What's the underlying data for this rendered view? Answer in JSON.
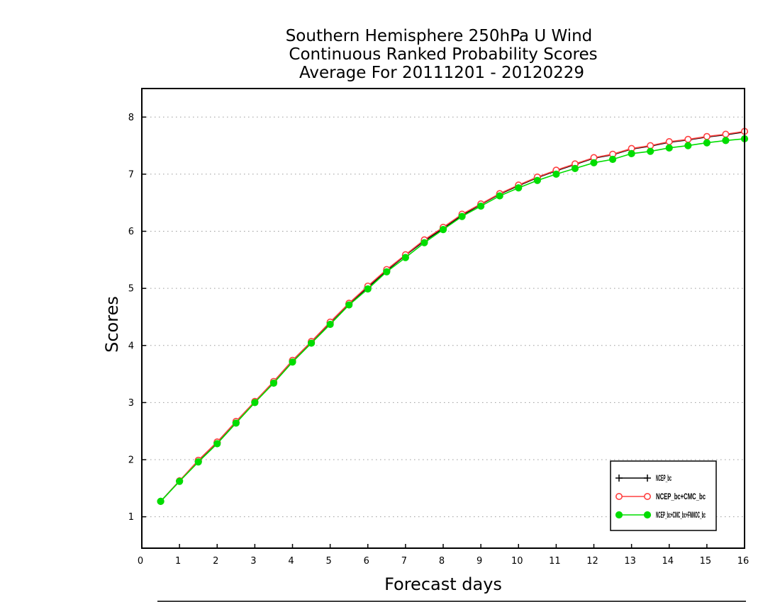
{
  "chart_data": {
    "type": "line",
    "title_lines": [
      "Southern Hemisphere 250hPa U Wind",
      "Continuous Ranked Probability Scores",
      "Average For 20111201 - 20120229"
    ],
    "xlabel": "Forecast days",
    "ylabel": "Scores",
    "xlim": [
      0,
      16
    ],
    "ylim": [
      0.45,
      8.5
    ],
    "x_ticks": [
      0,
      1,
      2,
      3,
      4,
      5,
      6,
      7,
      8,
      9,
      10,
      11,
      12,
      13,
      14,
      15,
      16
    ],
    "y_ticks": [
      1,
      2,
      3,
      4,
      5,
      6,
      7,
      8
    ],
    "grid": "horizontal dotted",
    "legend_position": "bottom-right",
    "x": [
      0.5,
      1,
      1.5,
      2,
      2.5,
      3,
      3.5,
      4,
      4.5,
      5,
      5.5,
      6,
      6.5,
      7,
      7.5,
      8,
      8.5,
      9,
      9.5,
      10,
      10.5,
      11,
      11.5,
      12,
      12.5,
      13,
      13.5,
      14,
      14.5,
      15,
      15.5,
      16
    ],
    "series": [
      {
        "name": "NCEP_bc",
        "color": "#000000",
        "marker": "plus",
        "values": [
          1.27,
          1.63,
          1.97,
          2.3,
          2.65,
          3.01,
          3.36,
          3.73,
          4.06,
          4.4,
          4.73,
          5.02,
          5.31,
          5.58,
          5.83,
          6.05,
          6.28,
          6.47,
          6.65,
          6.8,
          6.94,
          7.06,
          7.17,
          7.28,
          7.34,
          7.44,
          7.49,
          7.56,
          7.6,
          7.65,
          7.69,
          7.74
        ]
      },
      {
        "name": "NCEP_bc+CMC_bc",
        "color": "#ff4040",
        "marker": "open-circle",
        "values": [
          1.27,
          1.63,
          1.99,
          2.31,
          2.67,
          3.02,
          3.37,
          3.74,
          4.07,
          4.41,
          4.74,
          5.04,
          5.33,
          5.59,
          5.85,
          6.07,
          6.3,
          6.48,
          6.66,
          6.81,
          6.95,
          7.07,
          7.18,
          7.29,
          7.35,
          7.45,
          7.5,
          7.57,
          7.61,
          7.66,
          7.7,
          7.75
        ]
      },
      {
        "name": "NCEP_bc+CMC_bc+FNMOC_bc",
        "color": "#00dd00",
        "marker": "filled-circle",
        "values": [
          1.27,
          1.62,
          1.96,
          2.28,
          2.64,
          3.0,
          3.34,
          3.71,
          4.04,
          4.37,
          4.71,
          4.99,
          5.29,
          5.54,
          5.8,
          6.03,
          6.26,
          6.44,
          6.62,
          6.76,
          6.89,
          7.0,
          7.1,
          7.2,
          7.26,
          7.36,
          7.4,
          7.46,
          7.5,
          7.55,
          7.59,
          7.62
        ]
      }
    ]
  }
}
